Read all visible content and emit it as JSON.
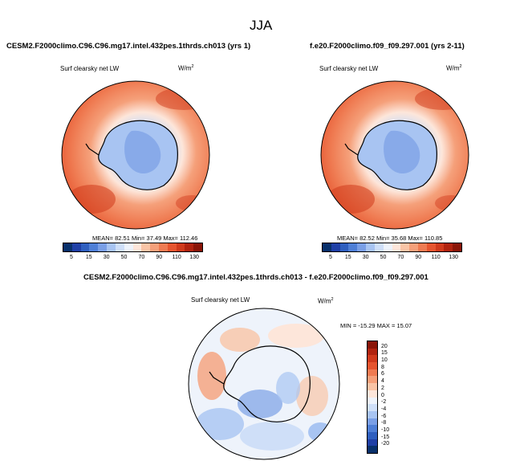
{
  "title": "JJA",
  "panels": [
    {
      "case": "CESM2.F2000climo.C96.C96.mg17.intel.432pes.1thrds.ch013 (yrs 1)",
      "variable": "Surf clearsky net LW",
      "units": "W/m",
      "units_sup": "2",
      "stats": "MEAN= 82.51  Min= 37.49  Max= 112.46"
    },
    {
      "case": "f.e20.F2000climo.f09_f09.297.001 (yrs 2-11)",
      "variable": "Surf clearsky net LW",
      "units": "W/m",
      "units_sup": "2",
      "stats": "MEAN= 82.52  Min= 35.68  Max= 110.85"
    }
  ],
  "diff": {
    "case": "CESM2.F2000climo.C96.C96.mg17.intel.432pes.1thrds.ch013 - f.e20.F2000climo.f09_f09.297.001",
    "variable": "Surf clearsky net LW",
    "units": "W/m",
    "units_sup": "2",
    "stats": "MIN = -15.29 MAX = 15.07"
  },
  "colorbar_top": {
    "labels": [
      "5",
      "15",
      "30",
      "50",
      "70",
      "90",
      "110",
      "130"
    ],
    "colors": [
      "#08306b",
      "#1f3fa6",
      "#2f5fbf",
      "#4f7fd6",
      "#7a9fe6",
      "#a8c4f2",
      "#cfdff8",
      "#eef3fb",
      "#fde6da",
      "#f9c4a6",
      "#f5a07a",
      "#ef7b52",
      "#e6552f",
      "#d03a1c",
      "#b0230f",
      "#8a1508"
    ]
  },
  "colorbar_diff": {
    "labels": [
      "20",
      "15",
      "10",
      "8",
      "6",
      "4",
      "2",
      "0",
      "-2",
      "-4",
      "-6",
      "-8",
      "-10",
      "-15",
      "-20"
    ],
    "colors": [
      "#8a1508",
      "#b0230f",
      "#d03a1c",
      "#e6552f",
      "#ef7b52",
      "#f5a07a",
      "#f9c4a6",
      "#fde6da",
      "#eef3fb",
      "#cfdff8",
      "#a8c4f2",
      "#7a9fe6",
      "#4f7fd6",
      "#2f5fbf",
      "#1f3fa6",
      "#08306b"
    ]
  }
}
